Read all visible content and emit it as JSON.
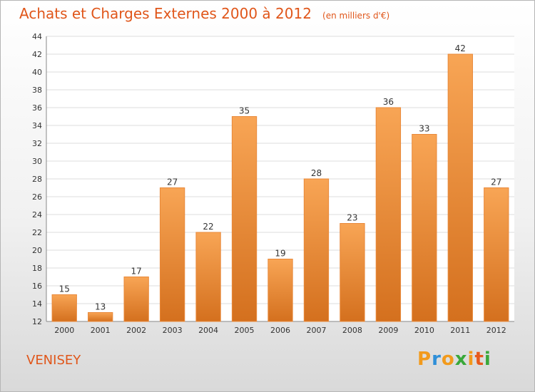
{
  "chart_data": {
    "type": "bar",
    "title": "Achats et Charges Externes 2000 à 2012",
    "subtitle": "(en milliers d'€)",
    "xlabel": "",
    "ylabel": "",
    "categories": [
      "2000",
      "2001",
      "2002",
      "2003",
      "2004",
      "2005",
      "2006",
      "2007",
      "2008",
      "2009",
      "2010",
      "2011",
      "2012"
    ],
    "values": [
      15,
      13,
      17,
      27,
      22,
      35,
      19,
      28,
      23,
      36,
      33,
      42,
      27
    ],
    "ylim": [
      12,
      44
    ],
    "yticks": [
      12,
      14,
      16,
      18,
      20,
      22,
      24,
      26,
      28,
      30,
      32,
      34,
      36,
      38,
      40,
      42,
      44
    ],
    "grid": true,
    "bar_color": "#f28a2e"
  },
  "commune": "VENISEY",
  "logo": {
    "letters": [
      "P",
      "r",
      "o",
      "x",
      "i",
      "t",
      "i"
    ],
    "colors": [
      "#f29a1c",
      "#2f8fd8",
      "#f29a1c",
      "#3aa83a",
      "#f29a1c",
      "#e85a1c",
      "#3aa83a"
    ]
  }
}
